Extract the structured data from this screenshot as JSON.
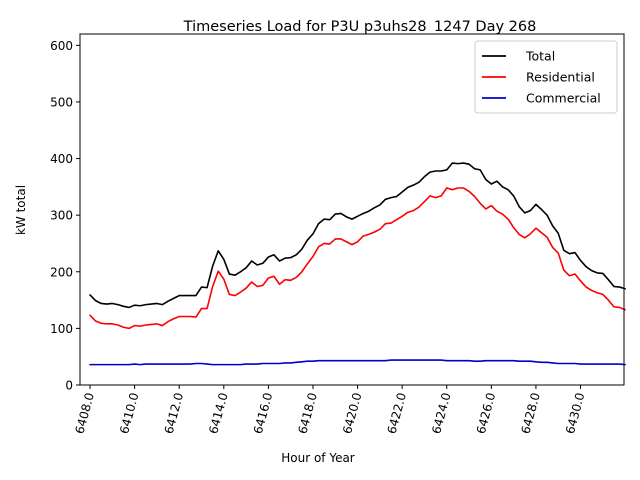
{
  "chart_data": {
    "type": "line",
    "title": "Timeseries Load for P3U p3uhs28_1247  Day 268",
    "xlabel": "Hour of Year",
    "ylabel": "kW total",
    "xlim": [
      6407.55,
      6431.95
    ],
    "ylim": [
      0,
      620
    ],
    "xticks": [
      6408,
      6410,
      6412,
      6414,
      6416,
      6418,
      6420,
      6422,
      6424,
      6426,
      6428,
      6430
    ],
    "xtick_labels": [
      "6408.0",
      "6410.0",
      "6412.0",
      "6414.0",
      "6416.0",
      "6418.0",
      "6420.0",
      "6422.0",
      "6424.0",
      "6426.0",
      "6428.0",
      "6430.0"
    ],
    "yticks": [
      0,
      100,
      200,
      300,
      400,
      500,
      600
    ],
    "ytick_labels": [
      "0",
      "100",
      "200",
      "300",
      "400",
      "500",
      "600"
    ],
    "x_start": 6408.0,
    "x_step": 0.25,
    "legend_position": "top-right",
    "grid": false,
    "series": [
      {
        "name": "Total",
        "color": "#000000",
        "values": [
          159,
          149,
          144,
          143,
          144,
          142,
          139,
          137,
          141,
          140,
          142,
          143,
          144,
          142,
          148,
          153,
          158,
          158,
          158,
          158,
          173,
          172,
          210,
          237,
          222,
          196,
          194,
          200,
          207,
          219,
          212,
          215,
          226,
          230,
          219,
          224,
          225,
          230,
          240,
          256,
          267,
          285,
          293,
          292,
          302,
          303,
          297,
          293,
          298,
          303,
          307,
          313,
          318,
          328,
          331,
          333,
          341,
          349,
          353,
          358,
          368,
          376,
          378,
          378,
          380,
          392,
          391,
          392,
          390,
          382,
          380,
          363,
          355,
          360,
          350,
          345,
          334,
          315,
          304,
          308,
          319,
          310,
          300,
          281,
          268,
          238,
          232,
          234,
          220,
          209,
          202,
          198,
          197,
          186,
          174,
          173,
          170
        ]
      },
      {
        "name": "Residential",
        "color": "#ff0000",
        "values": [
          123,
          113,
          109,
          108,
          108,
          106,
          102,
          100,
          105,
          104,
          106,
          107,
          108,
          105,
          112,
          117,
          121,
          121,
          121,
          120,
          135,
          135,
          174,
          201,
          187,
          160,
          158,
          164,
          171,
          182,
          174,
          176,
          189,
          192,
          178,
          186,
          185,
          190,
          200,
          214,
          227,
          244,
          250,
          249,
          258,
          258,
          253,
          248,
          253,
          263,
          266,
          270,
          275,
          285,
          286,
          292,
          298,
          305,
          308,
          314,
          324,
          334,
          331,
          334,
          348,
          345,
          348,
          348,
          342,
          333,
          321,
          311,
          317,
          307,
          302,
          293,
          278,
          266,
          260,
          267,
          277,
          269,
          261,
          243,
          233,
          203,
          193,
          196,
          184,
          173,
          167,
          163,
          160,
          150,
          138,
          137,
          133
        ]
      },
      {
        "name": "Commercial",
        "color": "#0000cc",
        "values": [
          36,
          36,
          36,
          36,
          36,
          36,
          36,
          36,
          37,
          36,
          37,
          37,
          37,
          37,
          37,
          37,
          37,
          37,
          37,
          38,
          38,
          37,
          36,
          36,
          36,
          36,
          36,
          36,
          37,
          37,
          37,
          38,
          38,
          38,
          38,
          39,
          39,
          40,
          41,
          42,
          42,
          43,
          43,
          43,
          43,
          43,
          43,
          43,
          43,
          43,
          43,
          43,
          43,
          43,
          44,
          44,
          44,
          44,
          44,
          44,
          44,
          44,
          44,
          44,
          43,
          43,
          43,
          43,
          43,
          42,
          42,
          43,
          43,
          43,
          43,
          43,
          43,
          42,
          42,
          42,
          41,
          40,
          40,
          39,
          38,
          38,
          38,
          38,
          37,
          37,
          37,
          37,
          37,
          37,
          37,
          37,
          36
        ]
      }
    ]
  }
}
